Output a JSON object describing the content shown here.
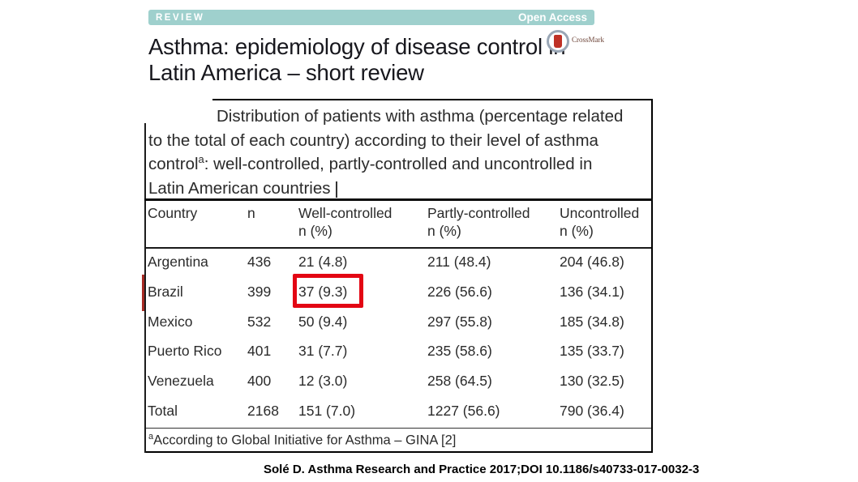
{
  "banner": {
    "review_label": "REVIEW",
    "open_access_label": "Open Access",
    "banner_color": "#9fd0cd",
    "text_color": "#ffffff"
  },
  "title": {
    "line1": "Asthma: epidemiology of disease control in",
    "line2": "Latin America – short review"
  },
  "crossmark": {
    "label": "CrossMark",
    "mark_color": "#bf3126",
    "ring_color": "#9aa7b6"
  },
  "table": {
    "caption": {
      "line1": "Distribution of patients with asthma (percentage related",
      "line2": "to the total of each country) according to their level of asthma",
      "line3_pre": "control",
      "line3_sup": "a",
      "line3_post": ": well-controlled, partly-controlled and uncontrolled in",
      "line4": "Latin American countries"
    },
    "header": {
      "col1": "Country",
      "col2": "n",
      "col3_line1": "Well-controlled",
      "col3_line2": "n (%)",
      "col4_line1": "Partly-controlled",
      "col4_line2": "n (%)",
      "col5_line1": "Uncontrolled",
      "col5_line2": "n (%)"
    },
    "rows": [
      {
        "country": "Argentina",
        "n": "436",
        "well": "21 (4.8)",
        "partly": "211 (48.4)",
        "uncontrolled": "204 (46.8)"
      },
      {
        "country": "Brazil",
        "n": "399",
        "well": "37 (9.3)",
        "partly": "226 (56.6)",
        "uncontrolled": "136 (34.1)"
      },
      {
        "country": "Mexico",
        "n": "532",
        "well": "50 (9.4)",
        "partly": "297 (55.8)",
        "uncontrolled": "185 (34.8)"
      },
      {
        "country": "Puerto Rico",
        "n": "401",
        "well": "31 (7.7)",
        "partly": "235 (58.6)",
        "uncontrolled": "135 (33.7)"
      },
      {
        "country": "Venezuela",
        "n": "400",
        "well": "12 (3.0)",
        "partly": "258 (64.5)",
        "uncontrolled": "130 (32.5)"
      },
      {
        "country": "Total",
        "n": "2168",
        "well": "151 (7.0)",
        "partly": "1227 (56.6)",
        "uncontrolled": "790 (36.4)"
      }
    ],
    "footnote": {
      "sup": "a",
      "text": "According to Global Initiative for Asthma – GINA [2]"
    },
    "highlight": {
      "row": "Brazil",
      "column": "Well-controlled n (%)",
      "value": "37 (9.3)",
      "box_color": "#e30613"
    }
  },
  "citation": "Solé D. Asthma Research and Practice 2017;DOI 10.1186/s40733-017-0032-3"
}
